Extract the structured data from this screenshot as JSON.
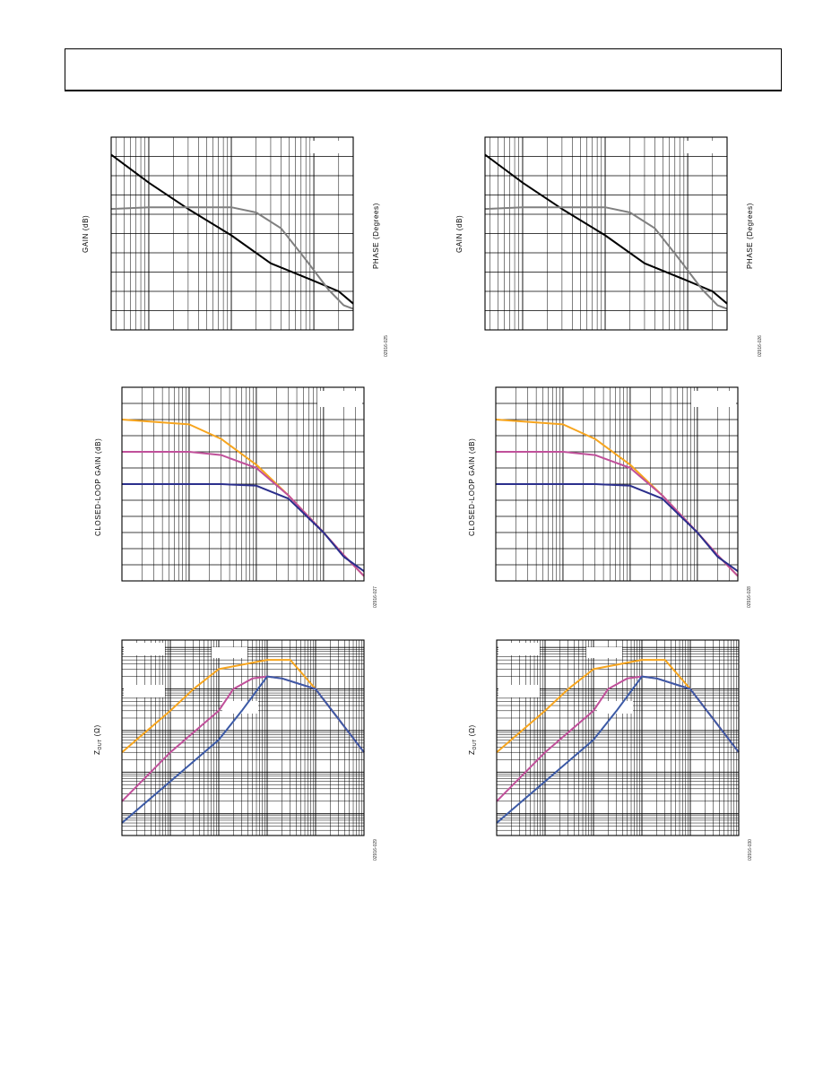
{
  "chart_data": [
    {
      "type": "line",
      "ylabel": "GAIN (dB)",
      "ylabel2": "PHASE (Degrees)",
      "xscale": "log",
      "grid": true,
      "figure_id": "02916-025",
      "series": [
        {
          "color": "#000000",
          "x": [
            0.35,
            1,
            3,
            10,
            30,
            100,
            200,
            300
          ],
          "y": [
            10.0,
            8.4,
            6.9,
            5.4,
            3.8,
            2.8,
            2.2,
            1.5
          ]
        },
        {
          "color": "#808080",
          "x": [
            0.35,
            1,
            3,
            10,
            20,
            40,
            80,
            150,
            230,
            300
          ],
          "y": [
            6.9,
            7.0,
            7.0,
            7.0,
            6.7,
            5.8,
            4.0,
            2.3,
            1.4,
            1.2
          ]
        }
      ]
    },
    {
      "type": "line",
      "ylabel": "GAIN (dB)",
      "ylabel2": "PHASE (Degrees)",
      "xscale": "log",
      "grid": true,
      "figure_id": "02916-026",
      "series": [
        {
          "color": "#000000",
          "x": [
            0.35,
            1,
            3,
            10,
            30,
            100,
            200,
            300
          ],
          "y": [
            10.0,
            8.4,
            6.9,
            5.4,
            3.8,
            2.8,
            2.2,
            1.5
          ]
        },
        {
          "color": "#808080",
          "x": [
            0.35,
            1,
            3,
            10,
            20,
            40,
            80,
            150,
            230,
            300
          ],
          "y": [
            6.9,
            7.0,
            7.0,
            7.0,
            6.7,
            5.8,
            4.0,
            2.3,
            1.4,
            1.2
          ]
        }
      ]
    },
    {
      "type": "line",
      "ylabel": "CLOSED-LOOP GAIN (dB)",
      "xscale": "log",
      "grid": true,
      "figure_id": "02916-027",
      "series": [
        {
          "color": "#f7a51e",
          "x": [
            0.1,
            1,
            3,
            10,
            30,
            100,
            200,
            400
          ],
          "y": [
            10.0,
            9.7,
            8.8,
            7.2,
            5.3,
            3.0,
            1.6,
            0.3
          ]
        },
        {
          "color": "#c0509a",
          "x": [
            0.1,
            1,
            3,
            10,
            30,
            100,
            200,
            400
          ],
          "y": [
            8.0,
            8.0,
            7.8,
            7.0,
            5.3,
            3.0,
            1.6,
            0.3
          ]
        },
        {
          "color": "#2b2f8c",
          "x": [
            0.1,
            1,
            3,
            10,
            30,
            100,
            200,
            400
          ],
          "y": [
            6.0,
            6.0,
            6.0,
            5.9,
            5.1,
            3.0,
            1.5,
            0.6
          ]
        }
      ]
    },
    {
      "type": "line",
      "ylabel": "CLOSED-LOOP GAIN (dB)",
      "xscale": "log",
      "grid": true,
      "figure_id": "02916-028",
      "series": [
        {
          "color": "#f7a51e",
          "x": [
            0.1,
            1,
            3,
            10,
            30,
            100,
            200,
            400
          ],
          "y": [
            10.0,
            9.7,
            8.8,
            7.2,
            5.3,
            3.0,
            1.6,
            0.3
          ]
        },
        {
          "color": "#c0509a",
          "x": [
            0.1,
            1,
            3,
            10,
            30,
            100,
            200,
            400
          ],
          "y": [
            8.0,
            8.0,
            7.8,
            7.0,
            5.3,
            3.0,
            1.6,
            0.3
          ]
        },
        {
          "color": "#2b2f8c",
          "x": [
            0.1,
            1,
            3,
            10,
            30,
            100,
            200,
            400
          ],
          "y": [
            6.0,
            6.0,
            6.0,
            5.9,
            5.1,
            3.0,
            1.5,
            0.6
          ]
        }
      ]
    },
    {
      "type": "line",
      "ylabel_main": "Z",
      "ylabel_sub": "OUT",
      "ylabel_unit": " (Ω)",
      "xscale": "log",
      "yscale": "log",
      "grid": true,
      "figure_id": "02916-029",
      "series": [
        {
          "color": "#f7a51e",
          "x": [
            0.001,
            0.01,
            0.03,
            0.1,
            1,
            3,
            10,
            100
          ],
          "y": [
            0.3,
            3,
            10,
            30,
            50,
            50,
            10,
            0.3
          ]
        },
        {
          "color": "#c0509a",
          "x": [
            0.001,
            0.01,
            0.1,
            0.2,
            0.5,
            1,
            2,
            10,
            100
          ],
          "y": [
            0.02,
            0.3,
            3,
            10,
            18,
            20,
            18,
            10,
            0.3
          ]
        },
        {
          "color": "#3c5aa6",
          "x": [
            0.001,
            0.01,
            0.1,
            0.3,
            1,
            2,
            10,
            100
          ],
          "y": [
            0.006,
            0.06,
            0.6,
            3,
            20,
            18,
            10,
            0.3
          ]
        }
      ]
    },
    {
      "type": "line",
      "ylabel_main": "Z",
      "ylabel_sub": "OUT",
      "ylabel_unit": " (Ω)",
      "xscale": "log",
      "yscale": "log",
      "grid": true,
      "figure_id": "02916-030",
      "series": [
        {
          "color": "#f7a51e",
          "x": [
            0.001,
            0.01,
            0.03,
            0.1,
            1,
            3,
            10,
            100
          ],
          "y": [
            0.3,
            3,
            10,
            30,
            50,
            50,
            10,
            0.3
          ]
        },
        {
          "color": "#c0509a",
          "x": [
            0.001,
            0.01,
            0.1,
            0.2,
            0.5,
            1,
            2,
            10,
            100
          ],
          "y": [
            0.02,
            0.3,
            3,
            10,
            18,
            20,
            18,
            10,
            0.3
          ]
        },
        {
          "color": "#3c5aa6",
          "x": [
            0.001,
            0.01,
            0.1,
            0.3,
            1,
            2,
            10,
            100
          ],
          "y": [
            0.006,
            0.06,
            0.6,
            3,
            20,
            18,
            10,
            0.3
          ]
        }
      ]
    }
  ]
}
